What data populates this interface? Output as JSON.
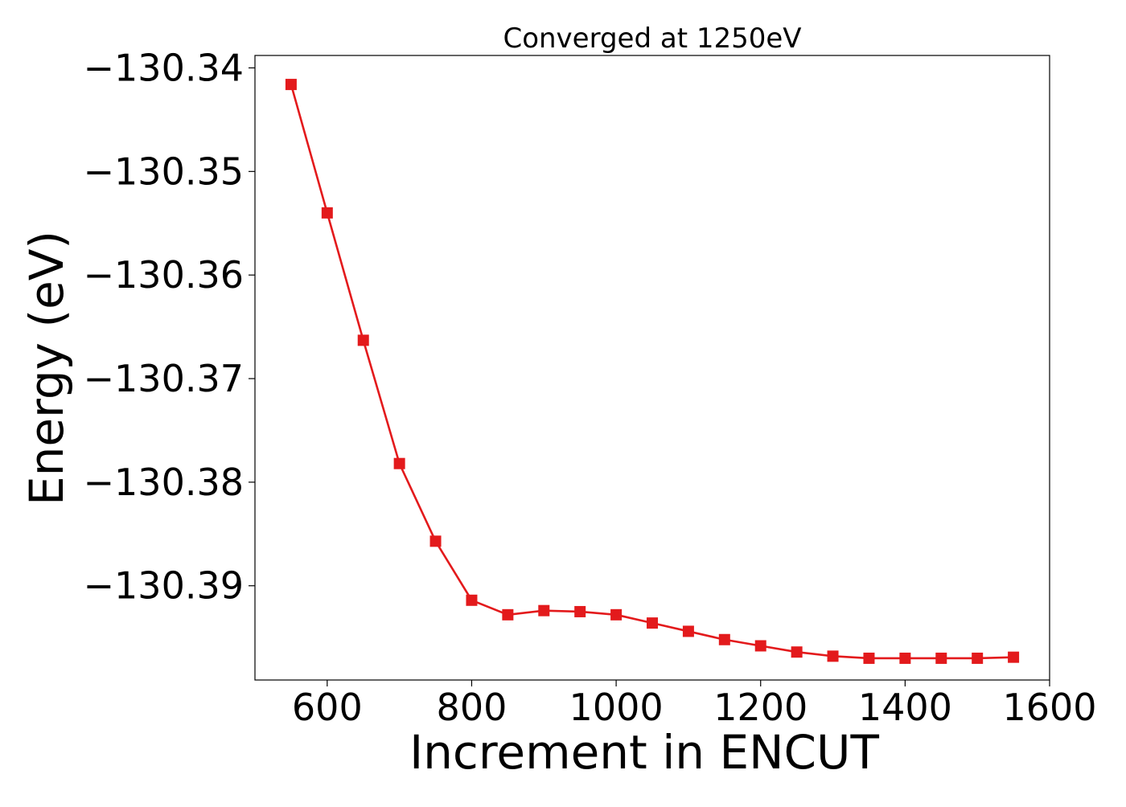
{
  "chart_data": {
    "type": "line",
    "title": "Converged at 1250eV",
    "xlabel": "Increment in ENCUT",
    "ylabel": "Energy (eV)",
    "xlim": [
      500,
      1600
    ],
    "ylim": [
      -130.3991,
      -130.3388
    ],
    "x_ticks": [
      600,
      800,
      1000,
      1200,
      1400,
      1600
    ],
    "x_tick_labels": [
      "600",
      "800",
      "1000",
      "1200",
      "1400",
      "1600"
    ],
    "y_ticks": [
      -130.34,
      -130.35,
      -130.36,
      -130.37,
      -130.38,
      -130.39
    ],
    "y_tick_labels": [
      "−130.34",
      "−130.35",
      "−130.36",
      "−130.37",
      "−130.38",
      "−130.39"
    ],
    "grid": false,
    "legend": "none",
    "series": [
      {
        "color": "#e31a1c",
        "marker": "square",
        "x": [
          550,
          600,
          650,
          700,
          750,
          800,
          850,
          900,
          950,
          1000,
          1050,
          1100,
          1150,
          1200,
          1250,
          1300,
          1350,
          1400,
          1450,
          1500,
          1550
        ],
        "y": [
          -130.3416,
          -130.354,
          -130.3663,
          -130.3782,
          -130.3857,
          -130.3914,
          -130.3928,
          -130.3924,
          -130.3925,
          -130.3928,
          -130.3936,
          -130.3944,
          -130.3952,
          -130.3958,
          -130.3964,
          -130.3968,
          -130.397,
          -130.397,
          -130.397,
          -130.397,
          -130.3969
        ]
      }
    ]
  }
}
